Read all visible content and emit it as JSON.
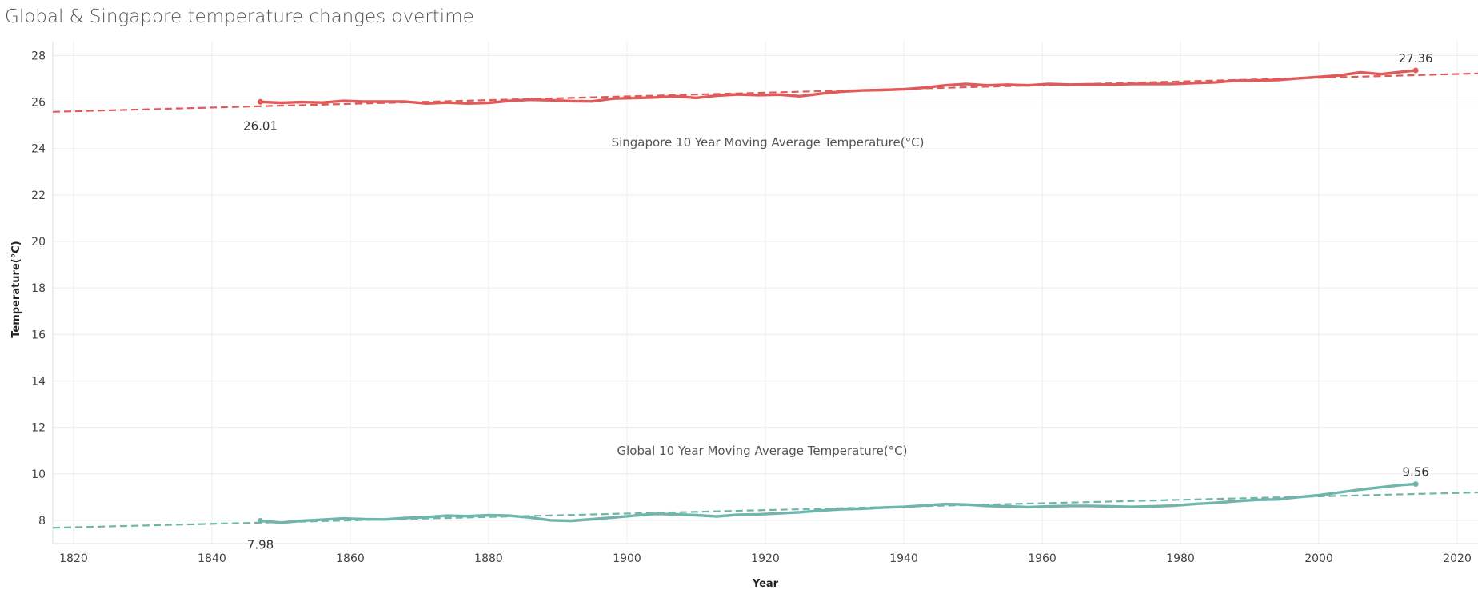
{
  "chart_data": {
    "type": "line",
    "title": "Global & Singapore temperature changes overtime",
    "xlabel": "Year",
    "ylabel": "Temperature(°C)",
    "xlim": [
      1817,
      2023
    ],
    "ylim": [
      7,
      28.6
    ],
    "x_ticks": [
      1820,
      1840,
      1860,
      1880,
      1900,
      1920,
      1940,
      1960,
      1980,
      2000,
      2020
    ],
    "y_ticks": [
      8,
      10,
      12,
      14,
      16,
      18,
      20,
      22,
      24,
      26,
      28
    ],
    "grid": true,
    "series": [
      {
        "name": "Singapore 10 Year Moving Average Temperature(°C)",
        "color": "#e05a5a",
        "x": [
          1847,
          1850,
          1853,
          1856,
          1859,
          1862,
          1865,
          1868,
          1871,
          1874,
          1877,
          1880,
          1883,
          1886,
          1889,
          1892,
          1895,
          1898,
          1901,
          1904,
          1907,
          1910,
          1913,
          1916,
          1919,
          1922,
          1925,
          1928,
          1931,
          1934,
          1937,
          1940,
          1943,
          1946,
          1949,
          1952,
          1955,
          1958,
          1961,
          1964,
          1967,
          1970,
          1973,
          1976,
          1979,
          1982,
          1985,
          1988,
          1991,
          1994,
          1997,
          2000,
          2003,
          2006,
          2009,
          2012,
          2014
        ],
        "values": [
          26.01,
          25.97,
          26.0,
          25.98,
          26.05,
          26.02,
          26.02,
          26.02,
          25.94,
          25.98,
          25.94,
          25.97,
          26.05,
          26.1,
          26.08,
          26.04,
          26.03,
          26.15,
          26.17,
          26.2,
          26.25,
          26.18,
          26.28,
          26.33,
          26.3,
          26.32,
          26.25,
          26.36,
          26.45,
          26.5,
          26.52,
          26.55,
          26.62,
          26.72,
          26.78,
          26.72,
          26.75,
          26.72,
          26.78,
          26.75,
          26.76,
          26.75,
          26.78,
          26.78,
          26.78,
          26.82,
          26.85,
          26.92,
          26.93,
          26.95,
          27.02,
          27.08,
          27.15,
          27.28,
          27.2,
          27.3,
          27.36
        ],
        "trend": [
          [
            1817,
            25.58
          ],
          [
            2023,
            27.23
          ]
        ],
        "start_label": "26.01",
        "end_label": "27.36"
      },
      {
        "name": "Global 10 Year Moving Average Temperature(°C)",
        "color": "#6fb5ab",
        "x": [
          1847,
          1850,
          1853,
          1856,
          1859,
          1862,
          1865,
          1868,
          1871,
          1874,
          1877,
          1880,
          1883,
          1886,
          1889,
          1892,
          1895,
          1898,
          1901,
          1904,
          1907,
          1910,
          1913,
          1916,
          1919,
          1922,
          1925,
          1928,
          1931,
          1934,
          1937,
          1940,
          1943,
          1946,
          1949,
          1952,
          1955,
          1958,
          1961,
          1964,
          1967,
          1970,
          1973,
          1976,
          1979,
          1982,
          1985,
          1988,
          1991,
          1994,
          1997,
          2000,
          2003,
          2006,
          2009,
          2012,
          2014
        ],
        "values": [
          7.98,
          7.9,
          7.98,
          8.03,
          8.08,
          8.05,
          8.04,
          8.1,
          8.14,
          8.2,
          8.18,
          8.22,
          8.2,
          8.12,
          8.0,
          7.98,
          8.05,
          8.12,
          8.2,
          8.28,
          8.26,
          8.22,
          8.17,
          8.24,
          8.26,
          8.3,
          8.35,
          8.42,
          8.48,
          8.5,
          8.55,
          8.58,
          8.64,
          8.7,
          8.68,
          8.62,
          8.6,
          8.57,
          8.6,
          8.62,
          8.62,
          8.6,
          8.58,
          8.6,
          8.63,
          8.7,
          8.75,
          8.82,
          8.88,
          8.9,
          9.0,
          9.08,
          9.2,
          9.32,
          9.42,
          9.52,
          9.56
        ],
        "trend": [
          [
            1817,
            7.68
          ],
          [
            2023,
            9.2
          ]
        ],
        "start_label": "7.98",
        "end_label": "9.56"
      }
    ]
  }
}
